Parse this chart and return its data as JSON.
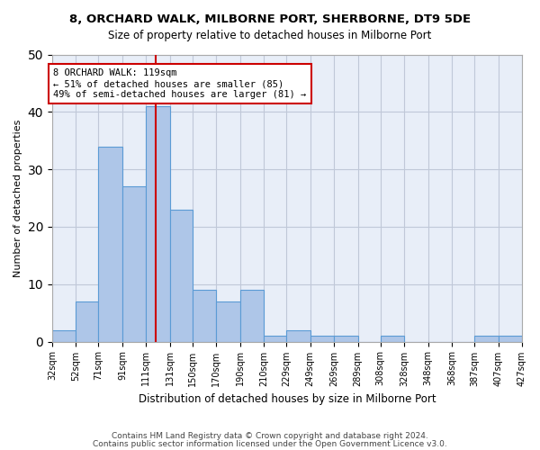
{
  "title": "8, ORCHARD WALK, MILBORNE PORT, SHERBORNE, DT9 5DE",
  "subtitle": "Size of property relative to detached houses in Milborne Port",
  "xlabel": "Distribution of detached houses by size in Milborne Port",
  "ylabel": "Number of detached properties",
  "bar_color": "#aec6e8",
  "bar_edge_color": "#5b9bd5",
  "background_color": "#ffffff",
  "axes_bg_color": "#e8eef8",
  "grid_color": "#c0c8d8",
  "vline_x": 119,
  "vline_color": "#cc0000",
  "annotation_text": "8 ORCHARD WALK: 119sqm\n← 51% of detached houses are smaller (85)\n49% of semi-detached houses are larger (81) →",
  "annotation_box_color": "#ffffff",
  "annotation_box_edge": "#cc0000",
  "bins": [
    32,
    52,
    71,
    91,
    111,
    131,
    150,
    170,
    190,
    210,
    229,
    249,
    269,
    289,
    308,
    328,
    348,
    368,
    387,
    407,
    427
  ],
  "counts": [
    2,
    7,
    34,
    27,
    41,
    23,
    9,
    7,
    9,
    1,
    2,
    1,
    1,
    0,
    1,
    0,
    0,
    0,
    1,
    1
  ],
  "ylim": [
    0,
    50
  ],
  "footer1": "Contains HM Land Registry data © Crown copyright and database right 2024.",
  "footer2": "Contains public sector information licensed under the Open Government Licence v3.0."
}
